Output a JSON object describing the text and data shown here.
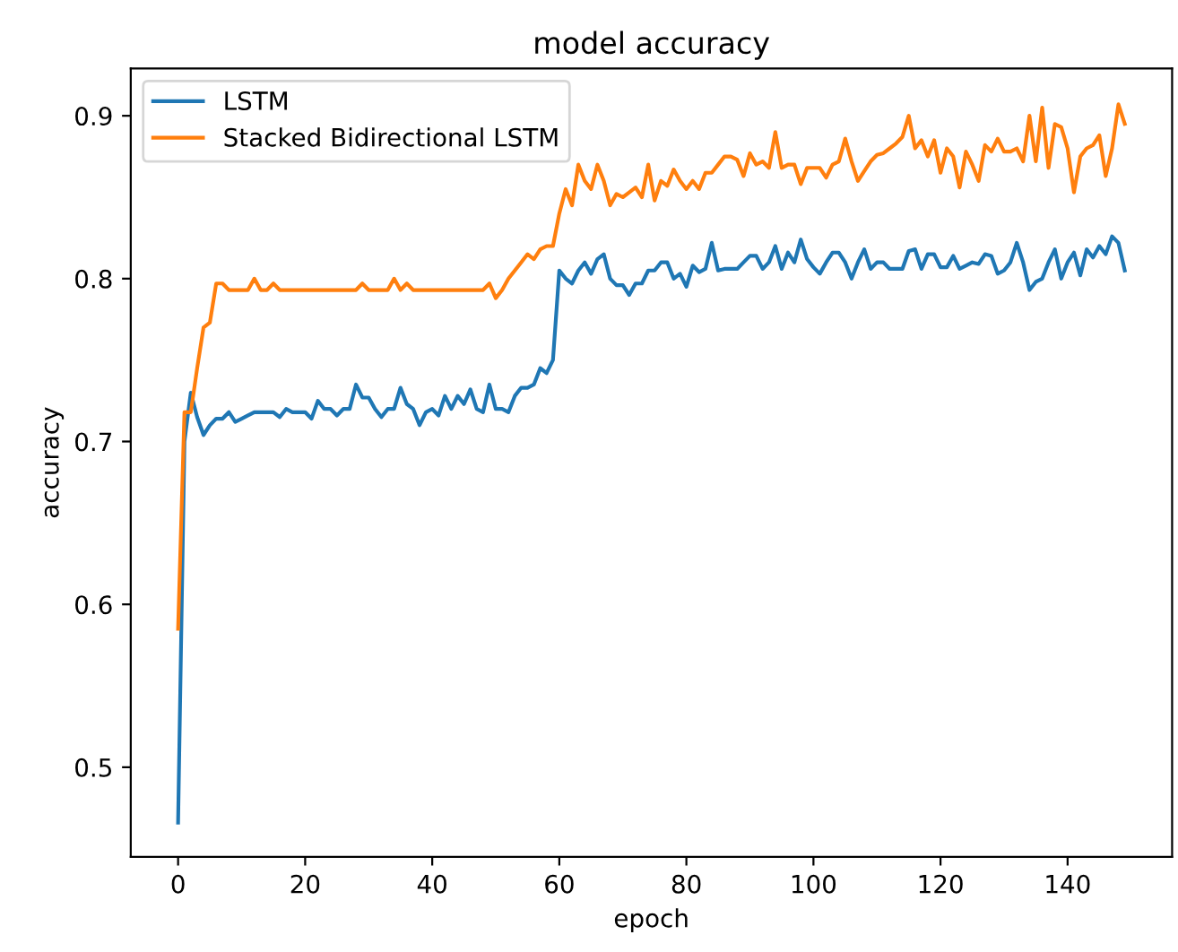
{
  "chart_data": {
    "type": "line",
    "title": "model accuracy",
    "xlabel": "epoch",
    "ylabel": "accuracy",
    "x": [
      0,
      1,
      2,
      3,
      4,
      5,
      6,
      7,
      8,
      9,
      10,
      11,
      12,
      13,
      14,
      15,
      16,
      17,
      18,
      19,
      20,
      21,
      22,
      23,
      24,
      25,
      26,
      27,
      28,
      29,
      30,
      31,
      32,
      33,
      34,
      35,
      36,
      37,
      38,
      39,
      40,
      41,
      42,
      43,
      44,
      45,
      46,
      47,
      48,
      49,
      50,
      51,
      52,
      53,
      54,
      55,
      56,
      57,
      58,
      59,
      60,
      61,
      62,
      63,
      64,
      65,
      66,
      67,
      68,
      69,
      70,
      71,
      72,
      73,
      74,
      75,
      76,
      77,
      78,
      79,
      80,
      81,
      82,
      83,
      84,
      85,
      86,
      87,
      88,
      89,
      90,
      91,
      92,
      93,
      94,
      95,
      96,
      97,
      98,
      99,
      100,
      101,
      102,
      103,
      104,
      105,
      106,
      107,
      108,
      109,
      110,
      111,
      112,
      113,
      114,
      115,
      116,
      117,
      118,
      119,
      120,
      121,
      122,
      123,
      124,
      125,
      126,
      127,
      128,
      129,
      130,
      131,
      132,
      133,
      134,
      135,
      136,
      137,
      138,
      139,
      140,
      141,
      142,
      143,
      144,
      145,
      146,
      147,
      148,
      149
    ],
    "series": [
      {
        "name": "LSTM",
        "color": "#1f77b4",
        "values": [
          0.466,
          0.7,
          0.73,
          0.715,
          0.704,
          0.71,
          0.714,
          0.714,
          0.718,
          0.712,
          0.714,
          0.716,
          0.718,
          0.718,
          0.718,
          0.718,
          0.715,
          0.72,
          0.718,
          0.718,
          0.718,
          0.714,
          0.725,
          0.72,
          0.72,
          0.716,
          0.72,
          0.72,
          0.735,
          0.727,
          0.727,
          0.72,
          0.715,
          0.72,
          0.72,
          0.733,
          0.723,
          0.72,
          0.71,
          0.718,
          0.72,
          0.716,
          0.728,
          0.72,
          0.728,
          0.723,
          0.732,
          0.72,
          0.718,
          0.735,
          0.72,
          0.72,
          0.718,
          0.728,
          0.733,
          0.733,
          0.735,
          0.745,
          0.742,
          0.75,
          0.805,
          0.8,
          0.797,
          0.805,
          0.81,
          0.803,
          0.812,
          0.815,
          0.8,
          0.796,
          0.796,
          0.79,
          0.797,
          0.797,
          0.805,
          0.805,
          0.81,
          0.81,
          0.8,
          0.803,
          0.795,
          0.808,
          0.804,
          0.806,
          0.822,
          0.805,
          0.806,
          0.806,
          0.806,
          0.81,
          0.814,
          0.814,
          0.806,
          0.81,
          0.82,
          0.806,
          0.816,
          0.81,
          0.824,
          0.812,
          0.807,
          0.803,
          0.81,
          0.816,
          0.816,
          0.81,
          0.8,
          0.81,
          0.818,
          0.806,
          0.81,
          0.81,
          0.806,
          0.806,
          0.806,
          0.817,
          0.818,
          0.806,
          0.815,
          0.815,
          0.807,
          0.807,
          0.814,
          0.806,
          0.808,
          0.81,
          0.809,
          0.815,
          0.814,
          0.803,
          0.805,
          0.81,
          0.822,
          0.81,
          0.793,
          0.798,
          0.8,
          0.81,
          0.818,
          0.8,
          0.81,
          0.816,
          0.802,
          0.818,
          0.813,
          0.82,
          0.815,
          0.826,
          0.822,
          0.805
        ]
      },
      {
        "name": "Stacked Bidirectional LSTM",
        "color": "#ff7f0e",
        "values": [
          0.585,
          0.718,
          0.718,
          0.745,
          0.77,
          0.773,
          0.797,
          0.797,
          0.793,
          0.793,
          0.793,
          0.793,
          0.8,
          0.793,
          0.793,
          0.797,
          0.793,
          0.793,
          0.793,
          0.793,
          0.793,
          0.793,
          0.793,
          0.793,
          0.793,
          0.793,
          0.793,
          0.793,
          0.793,
          0.797,
          0.793,
          0.793,
          0.793,
          0.793,
          0.8,
          0.793,
          0.797,
          0.793,
          0.793,
          0.793,
          0.793,
          0.793,
          0.793,
          0.793,
          0.793,
          0.793,
          0.793,
          0.793,
          0.793,
          0.797,
          0.788,
          0.793,
          0.8,
          0.805,
          0.81,
          0.815,
          0.812,
          0.818,
          0.82,
          0.82,
          0.84,
          0.855,
          0.845,
          0.87,
          0.86,
          0.855,
          0.87,
          0.86,
          0.845,
          0.852,
          0.85,
          0.853,
          0.856,
          0.85,
          0.87,
          0.848,
          0.86,
          0.857,
          0.867,
          0.86,
          0.855,
          0.86,
          0.855,
          0.865,
          0.865,
          0.87,
          0.875,
          0.875,
          0.873,
          0.863,
          0.877,
          0.87,
          0.872,
          0.868,
          0.89,
          0.868,
          0.87,
          0.87,
          0.858,
          0.868,
          0.868,
          0.868,
          0.862,
          0.87,
          0.872,
          0.886,
          0.872,
          0.86,
          0.866,
          0.872,
          0.876,
          0.877,
          0.88,
          0.883,
          0.887,
          0.9,
          0.88,
          0.885,
          0.875,
          0.885,
          0.865,
          0.88,
          0.875,
          0.856,
          0.878,
          0.87,
          0.86,
          0.882,
          0.878,
          0.886,
          0.878,
          0.878,
          0.88,
          0.872,
          0.9,
          0.872,
          0.905,
          0.868,
          0.895,
          0.893,
          0.88,
          0.853,
          0.875,
          0.88,
          0.882,
          0.888,
          0.863,
          0.88,
          0.907,
          0.895
        ]
      }
    ],
    "xlim": [
      -7.45,
      156.45
    ],
    "xticks": [
      0,
      20,
      40,
      60,
      80,
      100,
      120,
      140
    ],
    "ylim": [
      0.445,
      0.929
    ],
    "yticks": [
      0.5,
      0.6,
      0.7,
      0.8,
      0.9
    ],
    "legend": "upper left",
    "grid": false
  }
}
